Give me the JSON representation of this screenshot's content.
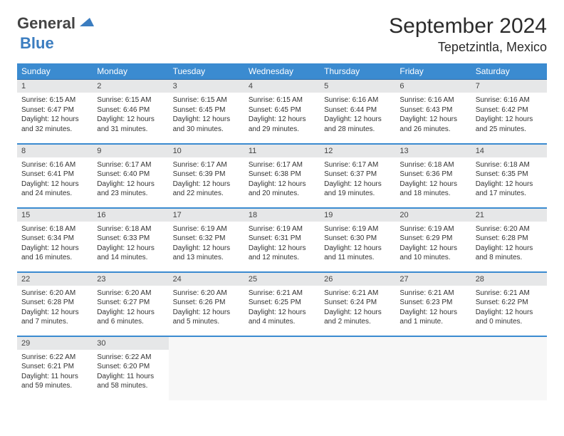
{
  "logo": {
    "word1": "General",
    "word2": "Blue"
  },
  "header": {
    "title": "September 2024",
    "location": "Tepetzintla, Mexico"
  },
  "weekdays": [
    "Sunday",
    "Monday",
    "Tuesday",
    "Wednesday",
    "Thursday",
    "Friday",
    "Saturday"
  ],
  "colors": {
    "accent": "#3b8bd0",
    "logo_accent": "#3b7dc0"
  },
  "days": [
    {
      "n": "1",
      "sunrise": "Sunrise: 6:15 AM",
      "sunset": "Sunset: 6:47 PM",
      "daylight": "Daylight: 12 hours and 32 minutes."
    },
    {
      "n": "2",
      "sunrise": "Sunrise: 6:15 AM",
      "sunset": "Sunset: 6:46 PM",
      "daylight": "Daylight: 12 hours and 31 minutes."
    },
    {
      "n": "3",
      "sunrise": "Sunrise: 6:15 AM",
      "sunset": "Sunset: 6:45 PM",
      "daylight": "Daylight: 12 hours and 30 minutes."
    },
    {
      "n": "4",
      "sunrise": "Sunrise: 6:15 AM",
      "sunset": "Sunset: 6:45 PM",
      "daylight": "Daylight: 12 hours and 29 minutes."
    },
    {
      "n": "5",
      "sunrise": "Sunrise: 6:16 AM",
      "sunset": "Sunset: 6:44 PM",
      "daylight": "Daylight: 12 hours and 28 minutes."
    },
    {
      "n": "6",
      "sunrise": "Sunrise: 6:16 AM",
      "sunset": "Sunset: 6:43 PM",
      "daylight": "Daylight: 12 hours and 26 minutes."
    },
    {
      "n": "7",
      "sunrise": "Sunrise: 6:16 AM",
      "sunset": "Sunset: 6:42 PM",
      "daylight": "Daylight: 12 hours and 25 minutes."
    },
    {
      "n": "8",
      "sunrise": "Sunrise: 6:16 AM",
      "sunset": "Sunset: 6:41 PM",
      "daylight": "Daylight: 12 hours and 24 minutes."
    },
    {
      "n": "9",
      "sunrise": "Sunrise: 6:17 AM",
      "sunset": "Sunset: 6:40 PM",
      "daylight": "Daylight: 12 hours and 23 minutes."
    },
    {
      "n": "10",
      "sunrise": "Sunrise: 6:17 AM",
      "sunset": "Sunset: 6:39 PM",
      "daylight": "Daylight: 12 hours and 22 minutes."
    },
    {
      "n": "11",
      "sunrise": "Sunrise: 6:17 AM",
      "sunset": "Sunset: 6:38 PM",
      "daylight": "Daylight: 12 hours and 20 minutes."
    },
    {
      "n": "12",
      "sunrise": "Sunrise: 6:17 AM",
      "sunset": "Sunset: 6:37 PM",
      "daylight": "Daylight: 12 hours and 19 minutes."
    },
    {
      "n": "13",
      "sunrise": "Sunrise: 6:18 AM",
      "sunset": "Sunset: 6:36 PM",
      "daylight": "Daylight: 12 hours and 18 minutes."
    },
    {
      "n": "14",
      "sunrise": "Sunrise: 6:18 AM",
      "sunset": "Sunset: 6:35 PM",
      "daylight": "Daylight: 12 hours and 17 minutes."
    },
    {
      "n": "15",
      "sunrise": "Sunrise: 6:18 AM",
      "sunset": "Sunset: 6:34 PM",
      "daylight": "Daylight: 12 hours and 16 minutes."
    },
    {
      "n": "16",
      "sunrise": "Sunrise: 6:18 AM",
      "sunset": "Sunset: 6:33 PM",
      "daylight": "Daylight: 12 hours and 14 minutes."
    },
    {
      "n": "17",
      "sunrise": "Sunrise: 6:19 AM",
      "sunset": "Sunset: 6:32 PM",
      "daylight": "Daylight: 12 hours and 13 minutes."
    },
    {
      "n": "18",
      "sunrise": "Sunrise: 6:19 AM",
      "sunset": "Sunset: 6:31 PM",
      "daylight": "Daylight: 12 hours and 12 minutes."
    },
    {
      "n": "19",
      "sunrise": "Sunrise: 6:19 AM",
      "sunset": "Sunset: 6:30 PM",
      "daylight": "Daylight: 12 hours and 11 minutes."
    },
    {
      "n": "20",
      "sunrise": "Sunrise: 6:19 AM",
      "sunset": "Sunset: 6:29 PM",
      "daylight": "Daylight: 12 hours and 10 minutes."
    },
    {
      "n": "21",
      "sunrise": "Sunrise: 6:20 AM",
      "sunset": "Sunset: 6:28 PM",
      "daylight": "Daylight: 12 hours and 8 minutes."
    },
    {
      "n": "22",
      "sunrise": "Sunrise: 6:20 AM",
      "sunset": "Sunset: 6:28 PM",
      "daylight": "Daylight: 12 hours and 7 minutes."
    },
    {
      "n": "23",
      "sunrise": "Sunrise: 6:20 AM",
      "sunset": "Sunset: 6:27 PM",
      "daylight": "Daylight: 12 hours and 6 minutes."
    },
    {
      "n": "24",
      "sunrise": "Sunrise: 6:20 AM",
      "sunset": "Sunset: 6:26 PM",
      "daylight": "Daylight: 12 hours and 5 minutes."
    },
    {
      "n": "25",
      "sunrise": "Sunrise: 6:21 AM",
      "sunset": "Sunset: 6:25 PM",
      "daylight": "Daylight: 12 hours and 4 minutes."
    },
    {
      "n": "26",
      "sunrise": "Sunrise: 6:21 AM",
      "sunset": "Sunset: 6:24 PM",
      "daylight": "Daylight: 12 hours and 2 minutes."
    },
    {
      "n": "27",
      "sunrise": "Sunrise: 6:21 AM",
      "sunset": "Sunset: 6:23 PM",
      "daylight": "Daylight: 12 hours and 1 minute."
    },
    {
      "n": "28",
      "sunrise": "Sunrise: 6:21 AM",
      "sunset": "Sunset: 6:22 PM",
      "daylight": "Daylight: 12 hours and 0 minutes."
    },
    {
      "n": "29",
      "sunrise": "Sunrise: 6:22 AM",
      "sunset": "Sunset: 6:21 PM",
      "daylight": "Daylight: 11 hours and 59 minutes."
    },
    {
      "n": "30",
      "sunrise": "Sunrise: 6:22 AM",
      "sunset": "Sunset: 6:20 PM",
      "daylight": "Daylight: 11 hours and 58 minutes."
    }
  ]
}
